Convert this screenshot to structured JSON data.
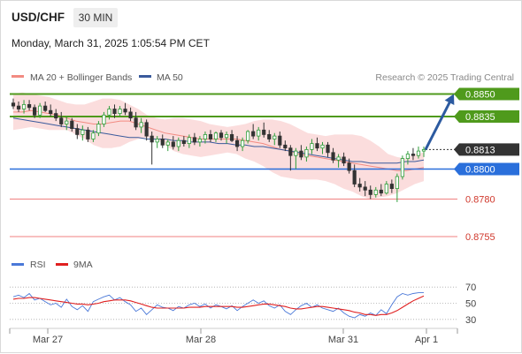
{
  "header": {
    "symbol": "USD/CHF",
    "timeframe": "30 MIN",
    "datetime": "Monday, March 31, 2025 1:05:54 PM CET"
  },
  "legend": {
    "items": [
      {
        "label": "MA 20 + Bollinger Bands",
        "color": "#f28b82"
      },
      {
        "label": "MA 50",
        "color": "#3a5a9c"
      }
    ],
    "credit": "Research © 2025 Trading Central"
  },
  "rsi_legend": {
    "items": [
      {
        "label": "RSI",
        "color": "#4a78d8"
      },
      {
        "label": "9MA",
        "color": "#e02020"
      }
    ]
  },
  "colors": {
    "resistance": "#4f9a1c",
    "pivot": "#2a6fdb",
    "support": "#f08080",
    "current_price": "#333333",
    "arrow": "#2c5aa0"
  },
  "chart_data": [
    {
      "type": "candlestick",
      "title": "USD/CHF",
      "x_ticks": [
        "Mar 27",
        "Mar 28",
        "Mar 31",
        "Apr 1"
      ],
      "ylim": [
        0.8745,
        0.8855
      ],
      "levels": [
        {
          "label": "0.8850",
          "value": 0.885,
          "kind": "resistance"
        },
        {
          "label": "0.8835",
          "value": 0.8835,
          "kind": "resistance"
        },
        {
          "label": "0.8813",
          "value": 0.8813,
          "kind": "current"
        },
        {
          "label": "0.8800",
          "value": 0.88,
          "kind": "pivot"
        },
        {
          "label": "0.8780",
          "value": 0.878,
          "kind": "support"
        },
        {
          "label": "0.8755",
          "value": 0.8755,
          "kind": "support"
        }
      ],
      "candles": [
        [
          0.8844,
          0.8847,
          0.884,
          0.8842
        ],
        [
          0.8842,
          0.8845,
          0.8838,
          0.884
        ],
        [
          0.884,
          0.8846,
          0.8837,
          0.8843
        ],
        [
          0.8843,
          0.8846,
          0.8839,
          0.8841
        ],
        [
          0.8841,
          0.8843,
          0.8834,
          0.8836
        ],
        [
          0.8836,
          0.8844,
          0.8834,
          0.8842
        ],
        [
          0.8842,
          0.8845,
          0.8838,
          0.8839
        ],
        [
          0.8839,
          0.8843,
          0.8835,
          0.8837
        ],
        [
          0.8837,
          0.884,
          0.8832,
          0.8834
        ],
        [
          0.8834,
          0.8838,
          0.8828,
          0.883
        ],
        [
          0.883,
          0.8835,
          0.8826,
          0.8832
        ],
        [
          0.8832,
          0.8834,
          0.8825,
          0.8827
        ],
        [
          0.8827,
          0.883,
          0.882,
          0.8823
        ],
        [
          0.8823,
          0.8829,
          0.8819,
          0.8826
        ],
        [
          0.8826,
          0.8828,
          0.8818,
          0.882
        ],
        [
          0.882,
          0.8826,
          0.8818,
          0.8824
        ],
        [
          0.8824,
          0.8832,
          0.8822,
          0.883
        ],
        [
          0.883,
          0.8838,
          0.8828,
          0.8836
        ],
        [
          0.8836,
          0.8842,
          0.8833,
          0.884
        ],
        [
          0.884,
          0.8843,
          0.8834,
          0.8837
        ],
        [
          0.8837,
          0.8842,
          0.8835,
          0.884
        ],
        [
          0.884,
          0.8844,
          0.8836,
          0.8838
        ],
        [
          0.8838,
          0.8841,
          0.8832,
          0.8834
        ],
        [
          0.8834,
          0.8838,
          0.8826,
          0.8828
        ],
        [
          0.8828,
          0.8834,
          0.8824,
          0.8831
        ],
        [
          0.8831,
          0.8833,
          0.8819,
          0.8822
        ],
        [
          0.8822,
          0.8825,
          0.8803,
          0.8818
        ],
        [
          0.8818,
          0.8822,
          0.8814,
          0.882
        ],
        [
          0.882,
          0.8823,
          0.8814,
          0.8816
        ],
        [
          0.8816,
          0.882,
          0.8812,
          0.8818
        ],
        [
          0.8818,
          0.8822,
          0.8813,
          0.8815
        ],
        [
          0.8815,
          0.8821,
          0.8812,
          0.8819
        ],
        [
          0.8819,
          0.8822,
          0.8815,
          0.8817
        ],
        [
          0.8817,
          0.8823,
          0.8814,
          0.8821
        ],
        [
          0.8821,
          0.8824,
          0.8816,
          0.8818
        ],
        [
          0.8818,
          0.8822,
          0.8815,
          0.882
        ],
        [
          0.882,
          0.8825,
          0.8817,
          0.8823
        ],
        [
          0.8823,
          0.8826,
          0.8818,
          0.882
        ],
        [
          0.882,
          0.8825,
          0.8818,
          0.8824
        ],
        [
          0.8824,
          0.8826,
          0.8819,
          0.8821
        ],
        [
          0.8821,
          0.8825,
          0.8817,
          0.8823
        ],
        [
          0.8823,
          0.8826,
          0.8818,
          0.8819
        ],
        [
          0.8819,
          0.8822,
          0.8812,
          0.8815
        ],
        [
          0.8815,
          0.8821,
          0.8812,
          0.8819
        ],
        [
          0.8819,
          0.8826,
          0.8817,
          0.8825
        ],
        [
          0.8825,
          0.883,
          0.882,
          0.8822
        ],
        [
          0.8822,
          0.8828,
          0.8819,
          0.8826
        ],
        [
          0.8826,
          0.8831,
          0.8821,
          0.8823
        ],
        [
          0.8823,
          0.8826,
          0.8818,
          0.882
        ],
        [
          0.882,
          0.8824,
          0.8816,
          0.8822
        ],
        [
          0.8822,
          0.8825,
          0.8814,
          0.8816
        ],
        [
          0.8816,
          0.8819,
          0.8812,
          0.8814
        ],
        [
          0.8814,
          0.8816,
          0.8799,
          0.8809
        ],
        [
          0.8809,
          0.8814,
          0.88,
          0.8812
        ],
        [
          0.8812,
          0.8816,
          0.8806,
          0.8808
        ],
        [
          0.8808,
          0.8815,
          0.8805,
          0.8813
        ],
        [
          0.8813,
          0.882,
          0.881,
          0.8817
        ],
        [
          0.8817,
          0.8821,
          0.8812,
          0.8814
        ],
        [
          0.8814,
          0.8818,
          0.881,
          0.8816
        ],
        [
          0.8816,
          0.8818,
          0.8808,
          0.8811
        ],
        [
          0.8811,
          0.8814,
          0.8804,
          0.8806
        ],
        [
          0.8806,
          0.881,
          0.8801,
          0.8808
        ],
        [
          0.8808,
          0.8811,
          0.8802,
          0.8804
        ],
        [
          0.8804,
          0.8807,
          0.8797,
          0.8799
        ],
        [
          0.8799,
          0.8803,
          0.8788,
          0.879
        ],
        [
          0.879,
          0.8794,
          0.8785,
          0.8788
        ],
        [
          0.8788,
          0.8792,
          0.8782,
          0.8786
        ],
        [
          0.8786,
          0.8789,
          0.878,
          0.8783
        ],
        [
          0.8783,
          0.8788,
          0.8781,
          0.8786
        ],
        [
          0.8786,
          0.879,
          0.8782,
          0.8784
        ],
        [
          0.8784,
          0.8792,
          0.8783,
          0.879
        ],
        [
          0.879,
          0.8793,
          0.8784,
          0.8787
        ],
        [
          0.8787,
          0.8797,
          0.8778,
          0.8795
        ],
        [
          0.8795,
          0.8809,
          0.8793,
          0.8807
        ],
        [
          0.8807,
          0.8812,
          0.8803,
          0.881
        ],
        [
          0.881,
          0.8814,
          0.8806,
          0.8809
        ],
        [
          0.8809,
          0.8815,
          0.8807,
          0.8812
        ],
        [
          0.8812,
          0.8815,
          0.8808,
          0.8813
        ]
      ],
      "ma20": [
        0.8838,
        0.8838,
        0.8839,
        0.8838,
        0.8837,
        0.8836,
        0.8834,
        0.8832,
        0.8831,
        0.883,
        0.883,
        0.8831,
        0.8832,
        0.8832,
        0.883,
        0.8828,
        0.8826,
        0.8824,
        0.8823,
        0.8822,
        0.8821,
        0.882,
        0.882,
        0.882,
        0.882,
        0.882,
        0.8819,
        0.8818,
        0.8817,
        0.8815,
        0.8813,
        0.8812,
        0.881,
        0.8809,
        0.8808,
        0.8807,
        0.8806,
        0.8805,
        0.8804,
        0.8803,
        0.8802,
        0.8801,
        0.88,
        0.8799,
        0.8799,
        0.88,
        0.8801
      ],
      "ma50": [
        0.8834,
        0.8833,
        0.8832,
        0.8831,
        0.883,
        0.8829,
        0.8828,
        0.8827,
        0.8826,
        0.8825,
        0.8824,
        0.8823,
        0.8822,
        0.8821,
        0.8821,
        0.882,
        0.882,
        0.882,
        0.8819,
        0.8819,
        0.8818,
        0.8818,
        0.8818,
        0.8817,
        0.8817,
        0.8816,
        0.8816,
        0.8815,
        0.8815,
        0.8814,
        0.8813,
        0.8812,
        0.8811,
        0.881,
        0.8809,
        0.8808,
        0.8807,
        0.8806,
        0.8805,
        0.8805,
        0.8804,
        0.8804,
        0.8804,
        0.8804,
        0.8805,
        0.8805,
        0.8806
      ],
      "bb_upper": [
        0.885,
        0.8851,
        0.885,
        0.8849,
        0.8848,
        0.8846,
        0.8844,
        0.8843,
        0.8843,
        0.8845,
        0.8847,
        0.8847,
        0.8846,
        0.8843,
        0.884,
        0.8836,
        0.8834,
        0.8833,
        0.8834,
        0.8834,
        0.8833,
        0.8832,
        0.883,
        0.8829,
        0.8828,
        0.8829,
        0.883,
        0.8832,
        0.8833,
        0.8833,
        0.8832,
        0.883,
        0.8827,
        0.8824,
        0.8823,
        0.8822,
        0.8823,
        0.8823,
        0.8823,
        0.8822,
        0.8819,
        0.8815,
        0.881,
        0.8808,
        0.8807,
        0.881,
        0.8811
      ],
      "bb_lower": [
        0.8826,
        0.8827,
        0.8828,
        0.8827,
        0.8826,
        0.8826,
        0.8826,
        0.8823,
        0.882,
        0.8816,
        0.8814,
        0.8814,
        0.8815,
        0.8818,
        0.882,
        0.8821,
        0.882,
        0.8816,
        0.8812,
        0.881,
        0.8809,
        0.8808,
        0.8809,
        0.881,
        0.8811,
        0.881,
        0.8807,
        0.8805,
        0.8802,
        0.8798,
        0.8795,
        0.8794,
        0.8793,
        0.8793,
        0.8793,
        0.8792,
        0.879,
        0.8787,
        0.8785,
        0.8782,
        0.878,
        0.8781,
        0.8782,
        0.8784,
        0.8787,
        0.879,
        0.8792
      ],
      "projection_to": 0.885
    },
    {
      "type": "line",
      "title": "RSI",
      "yticks": [
        70,
        50,
        30
      ],
      "ylim": [
        20,
        80
      ],
      "series": [
        {
          "name": "RSI",
          "values": [
            58,
            60,
            57,
            62,
            54,
            56,
            52,
            48,
            50,
            45,
            55,
            46,
            42,
            47,
            40,
            52,
            55,
            58,
            60,
            54,
            57,
            52,
            48,
            40,
            44,
            36,
            42,
            48,
            45,
            44,
            41,
            46,
            44,
            48,
            50,
            46,
            49,
            44,
            48,
            46,
            43,
            47,
            41,
            46,
            50,
            54,
            50,
            53,
            47,
            44,
            48,
            40,
            36,
            42,
            47,
            50,
            45,
            48,
            44,
            42,
            40,
            44,
            38,
            34,
            32,
            36,
            34,
            38,
            35,
            42,
            37,
            48,
            58,
            62,
            60,
            62,
            63,
            63
          ]
        },
        {
          "name": "9MA",
          "values": [
            55,
            56,
            56,
            57,
            57,
            56,
            55,
            54,
            53,
            52,
            51,
            50,
            49,
            49,
            48,
            49,
            50,
            52,
            53,
            54,
            54,
            54,
            53,
            51,
            49,
            47,
            45,
            44,
            44,
            44,
            44,
            44,
            44,
            45,
            45,
            45,
            46,
            46,
            46,
            46,
            46,
            46,
            45,
            45,
            46,
            47,
            48,
            49,
            49,
            48,
            47,
            46,
            44,
            43,
            43,
            44,
            45,
            46,
            46,
            45,
            44,
            43,
            42,
            41,
            39,
            38,
            36,
            36,
            35,
            36,
            36,
            38,
            41,
            45,
            49,
            53,
            56,
            59
          ]
        }
      ]
    }
  ]
}
